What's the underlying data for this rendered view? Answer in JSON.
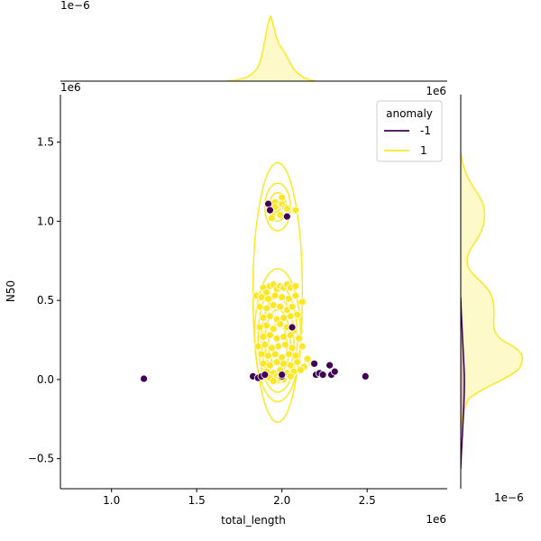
{
  "chart_data": {
    "type": "scatter",
    "subtype": "jointplot-kde",
    "xlabel": "total_length",
    "ylabel": "N50",
    "x_offset_label": "1e6",
    "y_offset_label": "1e6",
    "top_marginal_offset_label": "1e−6",
    "right_marginal_offset_label": "1e−6",
    "xlim": [
      0.7,
      2.97
    ],
    "ylim": [
      -0.69,
      1.8
    ],
    "xticks": [
      "1.0",
      "1.5",
      "2.0",
      "2.5"
    ],
    "yticks": [
      "−0.5",
      "0.0",
      "0.5",
      "1.0",
      "1.5"
    ],
    "legend": {
      "title": "anomaly",
      "placement": "top-right",
      "entries": [
        {
          "label": "-1",
          "color": "#440154"
        },
        {
          "label": "1",
          "color": "#fde725"
        }
      ]
    },
    "series": [
      {
        "name": "-1",
        "color": "#440154",
        "points": [
          [
            1.19,
            0.005
          ],
          [
            1.83,
            0.02
          ],
          [
            1.86,
            0.01
          ],
          [
            1.88,
            0.02
          ],
          [
            1.9,
            0.03
          ],
          [
            1.92,
            1.11
          ],
          [
            1.93,
            1.07
          ],
          [
            2.0,
            0.02
          ],
          [
            2.0,
            0.03
          ],
          [
            2.03,
            1.03
          ],
          [
            2.06,
            0.33
          ],
          [
            2.19,
            0.1
          ],
          [
            2.2,
            0.03
          ],
          [
            2.22,
            0.04
          ],
          [
            2.24,
            0.03
          ],
          [
            2.28,
            0.09
          ],
          [
            2.29,
            0.03
          ],
          [
            2.31,
            0.05
          ],
          [
            2.49,
            0.02
          ]
        ]
      },
      {
        "name": "1",
        "color": "#fde725",
        "points": [
          [
            1.89,
            0.58
          ],
          [
            1.91,
            0.55
          ],
          [
            1.93,
            0.59
          ],
          [
            1.95,
            0.6
          ],
          [
            1.97,
            0.57
          ],
          [
            1.99,
            0.59
          ],
          [
            2.01,
            0.58
          ],
          [
            2.03,
            0.6
          ],
          [
            2.05,
            0.58
          ],
          [
            2.08,
            0.59
          ],
          [
            1.85,
            0.53
          ],
          [
            1.88,
            0.52
          ],
          [
            1.92,
            0.51
          ],
          [
            1.96,
            0.53
          ],
          [
            2.0,
            0.52
          ],
          [
            2.04,
            0.51
          ],
          [
            2.08,
            0.53
          ],
          [
            2.12,
            0.49
          ],
          [
            1.87,
            0.46
          ],
          [
            1.91,
            0.45
          ],
          [
            1.95,
            0.47
          ],
          [
            1.99,
            0.46
          ],
          [
            2.03,
            0.44
          ],
          [
            2.06,
            0.46
          ],
          [
            1.89,
            0.39
          ],
          [
            1.93,
            0.4
          ],
          [
            1.97,
            0.38
          ],
          [
            2.01,
            0.39
          ],
          [
            2.05,
            0.4
          ],
          [
            2.09,
            0.41
          ],
          [
            1.87,
            0.33
          ],
          [
            1.91,
            0.34
          ],
          [
            1.95,
            0.32
          ],
          [
            1.99,
            0.35
          ],
          [
            2.03,
            0.33
          ],
          [
            2.07,
            0.31
          ],
          [
            1.89,
            0.27
          ],
          [
            1.93,
            0.28
          ],
          [
            1.97,
            0.26
          ],
          [
            2.01,
            0.27
          ],
          [
            2.05,
            0.28
          ],
          [
            2.1,
            0.26
          ],
          [
            1.86,
            0.21
          ],
          [
            1.9,
            0.22
          ],
          [
            1.94,
            0.2
          ],
          [
            1.98,
            0.21
          ],
          [
            2.02,
            0.22
          ],
          [
            2.06,
            0.2
          ],
          [
            2.12,
            0.21
          ],
          [
            1.88,
            0.16
          ],
          [
            1.92,
            0.15
          ],
          [
            1.96,
            0.16
          ],
          [
            2.0,
            0.14
          ],
          [
            2.04,
            0.16
          ],
          [
            2.08,
            0.15
          ],
          [
            2.15,
            0.13
          ],
          [
            1.89,
            0.1
          ],
          [
            1.93,
            0.09
          ],
          [
            1.97,
            0.11
          ],
          [
            2.01,
            0.1
          ],
          [
            2.05,
            0.09
          ],
          [
            2.09,
            0.11
          ],
          [
            2.13,
            0.08
          ],
          [
            2.18,
            0.1
          ],
          [
            1.91,
            0.05
          ],
          [
            1.95,
            0.04
          ],
          [
            1.99,
            0.06
          ],
          [
            2.03,
            0.04
          ],
          [
            2.07,
            0.05
          ],
          [
            2.11,
            0.06
          ],
          [
            1.93,
            0.01
          ],
          [
            1.97,
            0.02
          ],
          [
            2.01,
            0.0
          ],
          [
            2.05,
            0.02
          ],
          [
            1.95,
            -0.01
          ],
          [
            1.99,
            0.01
          ],
          [
            1.94,
            1.1
          ],
          [
            1.96,
            1.12
          ],
          [
            1.98,
            1.08
          ],
          [
            2.0,
            1.11
          ],
          [
            1.95,
            1.05
          ],
          [
            1.97,
            1.07
          ],
          [
            1.99,
            1.04
          ],
          [
            1.96,
            1.09
          ],
          [
            2.02,
            1.09
          ],
          [
            1.94,
            1.02
          ],
          [
            2.08,
            1.07
          ],
          [
            2.0,
            1.15
          ],
          [
            2.03,
            1.08
          ]
        ]
      }
    ],
    "kde": {
      "joint_levels_drawn_for": "1",
      "y_marginal_density_unit": "1e-6",
      "x_marginal_note": "single sharp peak near total_length 1.96e6"
    }
  }
}
